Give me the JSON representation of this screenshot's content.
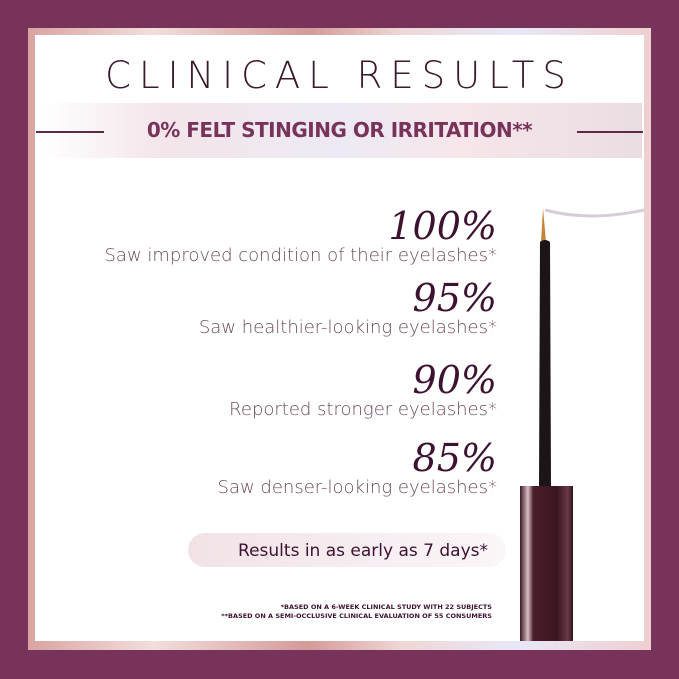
{
  "title": "CLINICAL RESULTS",
  "headline": "0% FELT STINGING OR IRRITATION**",
  "stats": [
    {
      "value": "100%",
      "label": "Saw improved condition of their eyelashes*"
    },
    {
      "value": "95%",
      "label": "Saw healthier-looking eyelashes*"
    },
    {
      "value": "90%",
      "label": "Reported stronger eyelashes*"
    },
    {
      "value": "85%",
      "label": "Saw denser-looking eyelashes*"
    }
  ],
  "results_note": "Results in as early as 7 days*",
  "footnotes": [
    "*BASED ON A 6-WEEK CLINICAL STUDY WITH 22 SUBJECTS",
    "**BASED ON A SEMI-OCCLUSIVE CLINICAL EVALUATION OF 55 CONSUMERS"
  ],
  "colors": {
    "background": "#77335a",
    "accent": "#77335a",
    "text": "#3d1230"
  }
}
